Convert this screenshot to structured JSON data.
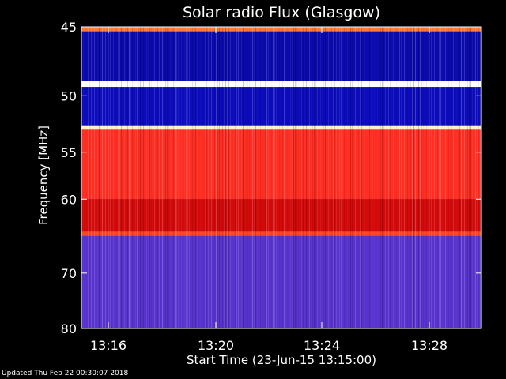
{
  "chart_data": {
    "type": "heatmap",
    "title": "Solar radio Flux (Glasgow)",
    "xlabel": "Start Time (23-Jun-15 13:15:00)",
    "ylabel": "Frequency [MHz]",
    "x_ticks": [
      "13:16",
      "13:20",
      "13:24",
      "13:28"
    ],
    "x_range_minutes": [
      13.35,
      13.53
    ],
    "y_ticks": [
      45,
      50,
      55,
      60,
      70,
      80
    ],
    "y_range_mhz": [
      45,
      80
    ],
    "y_scale": "reciprocal",
    "colormap": [
      "#000060",
      "#1010e0",
      "#6a3cc8",
      "#c00000",
      "#ff2020",
      "#ffd040",
      "#ffffff"
    ],
    "bands": [
      {
        "from": 45,
        "to": 45.3,
        "level": 0.75
      },
      {
        "from": 45.3,
        "to": 48.8,
        "level": 0.1
      },
      {
        "from": 48.8,
        "to": 49.3,
        "level": 1.0
      },
      {
        "from": 49.3,
        "to": 52.5,
        "level": 0.12
      },
      {
        "from": 52.5,
        "to": 52.9,
        "level": 0.95
      },
      {
        "from": 52.9,
        "to": 60,
        "level": 0.68
      },
      {
        "from": 60,
        "to": 64,
        "level": 0.55
      },
      {
        "from": 64,
        "to": 64.6,
        "level": 0.7
      },
      {
        "from": 64.6,
        "to": 80,
        "level": 0.3
      }
    ]
  },
  "footer": {
    "updated": "Updated Thu Feb 22 00:30:07 2018"
  }
}
